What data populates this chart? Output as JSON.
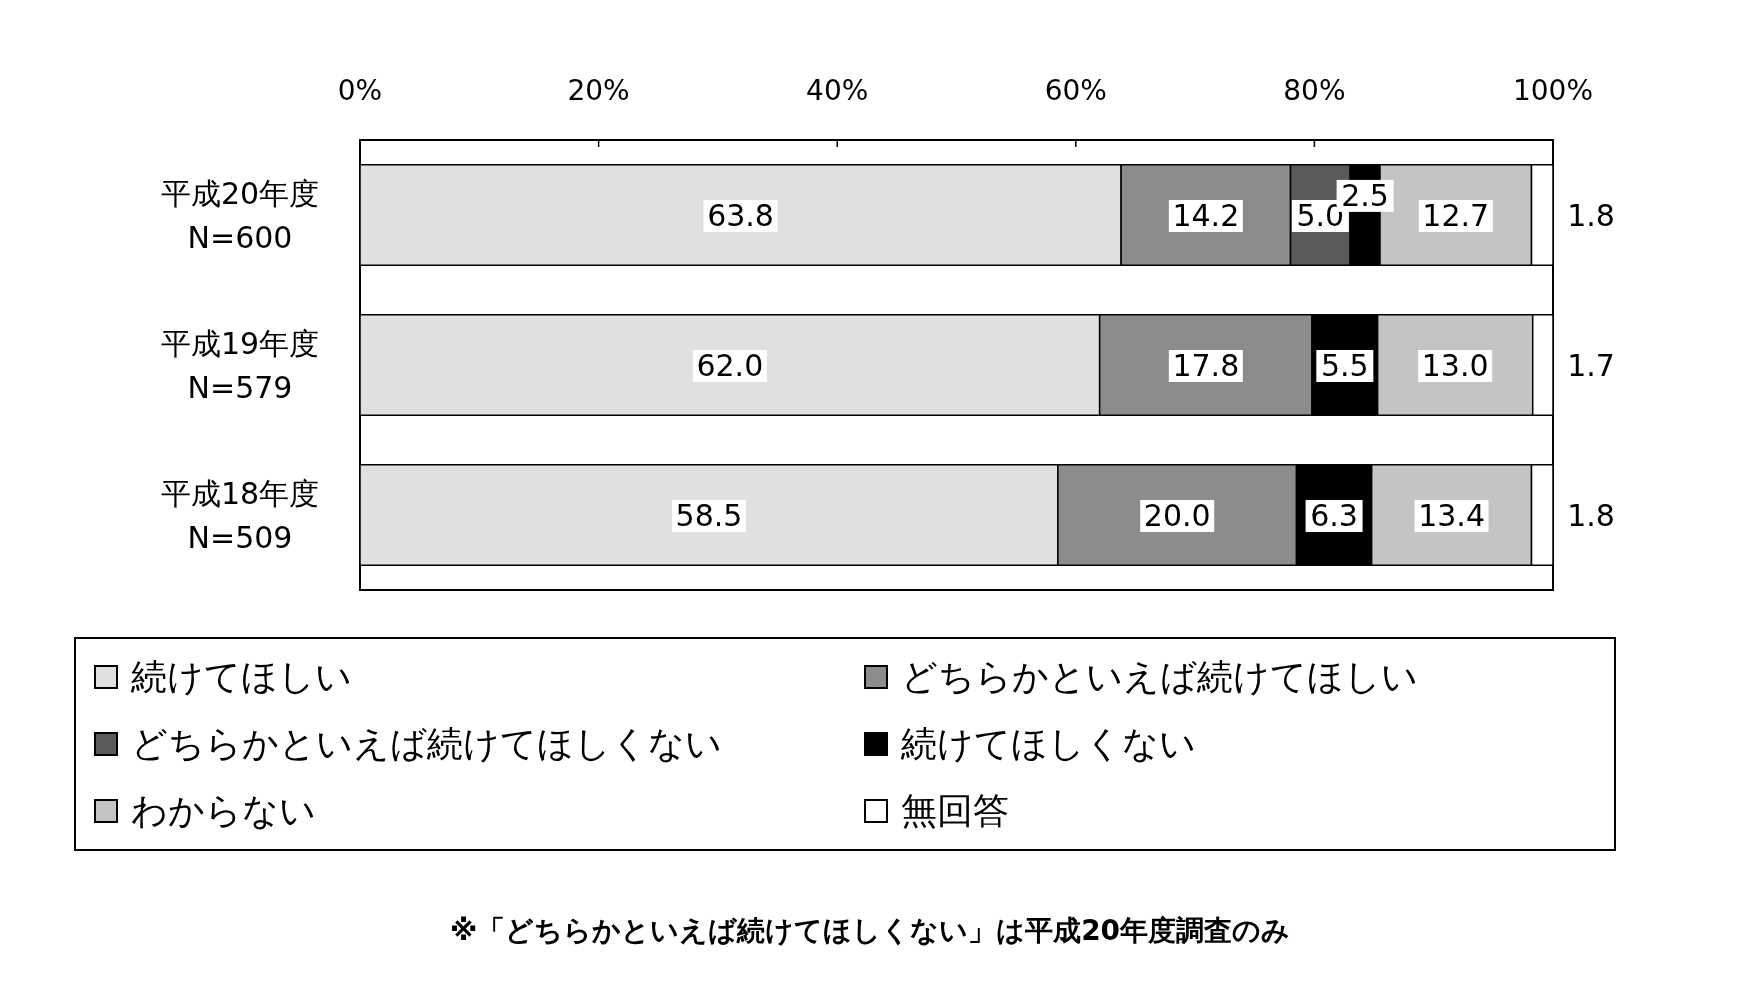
{
  "chart_data": {
    "type": "bar",
    "orientation": "horizontal",
    "stacked": true,
    "legend": "bottom",
    "grid": false,
    "categories": [
      "平成20年度\nN=600",
      "平成19年度\nN=579",
      "平成18年度\nN=509"
    ],
    "xlim": [
      0,
      100
    ],
    "xticks": [
      {
        "value": 0,
        "label": "0%"
      },
      {
        "value": 20,
        "label": "20%"
      },
      {
        "value": 40,
        "label": "40%"
      },
      {
        "value": 60,
        "label": "60%"
      },
      {
        "value": 80,
        "label": "80%"
      },
      {
        "value": 100,
        "label": "100%"
      }
    ],
    "series": [
      {
        "name": "続けてほしい",
        "color": "#e0e0e0",
        "values": [
          63.8,
          62.0,
          58.5
        ],
        "value_labels": [
          "63.8",
          "62.0",
          "58.5"
        ]
      },
      {
        "name": "どちらかといえば続けてほしい",
        "color": "#8c8c8c",
        "values": [
          14.2,
          17.8,
          20.0
        ],
        "value_labels": [
          "14.2",
          "17.8",
          "20.0"
        ]
      },
      {
        "name": "どちらかといえば続けてほしくない",
        "color": "#5a5a5a",
        "values": [
          5.0,
          null,
          null
        ],
        "value_labels": [
          "5.0",
          null,
          null
        ]
      },
      {
        "name": "続けてほしくない",
        "color": "#000000",
        "values": [
          2.5,
          5.5,
          6.3
        ],
        "value_labels": [
          "2.5",
          "5.5",
          "6.3"
        ]
      },
      {
        "name": "わからない",
        "color": "#c4c4c4",
        "values": [
          12.7,
          13.0,
          13.4
        ],
        "value_labels": [
          "12.7",
          "13.0",
          "13.4"
        ]
      },
      {
        "name": "無回答",
        "color": "#ffffff",
        "values": [
          1.8,
          1.7,
          1.8
        ],
        "value_labels": [
          "1.8",
          "1.7",
          "1.8"
        ]
      }
    ],
    "annotations": [
      "※「どちらかといえば続けてほしくない」は平成20年度調査のみ"
    ]
  }
}
